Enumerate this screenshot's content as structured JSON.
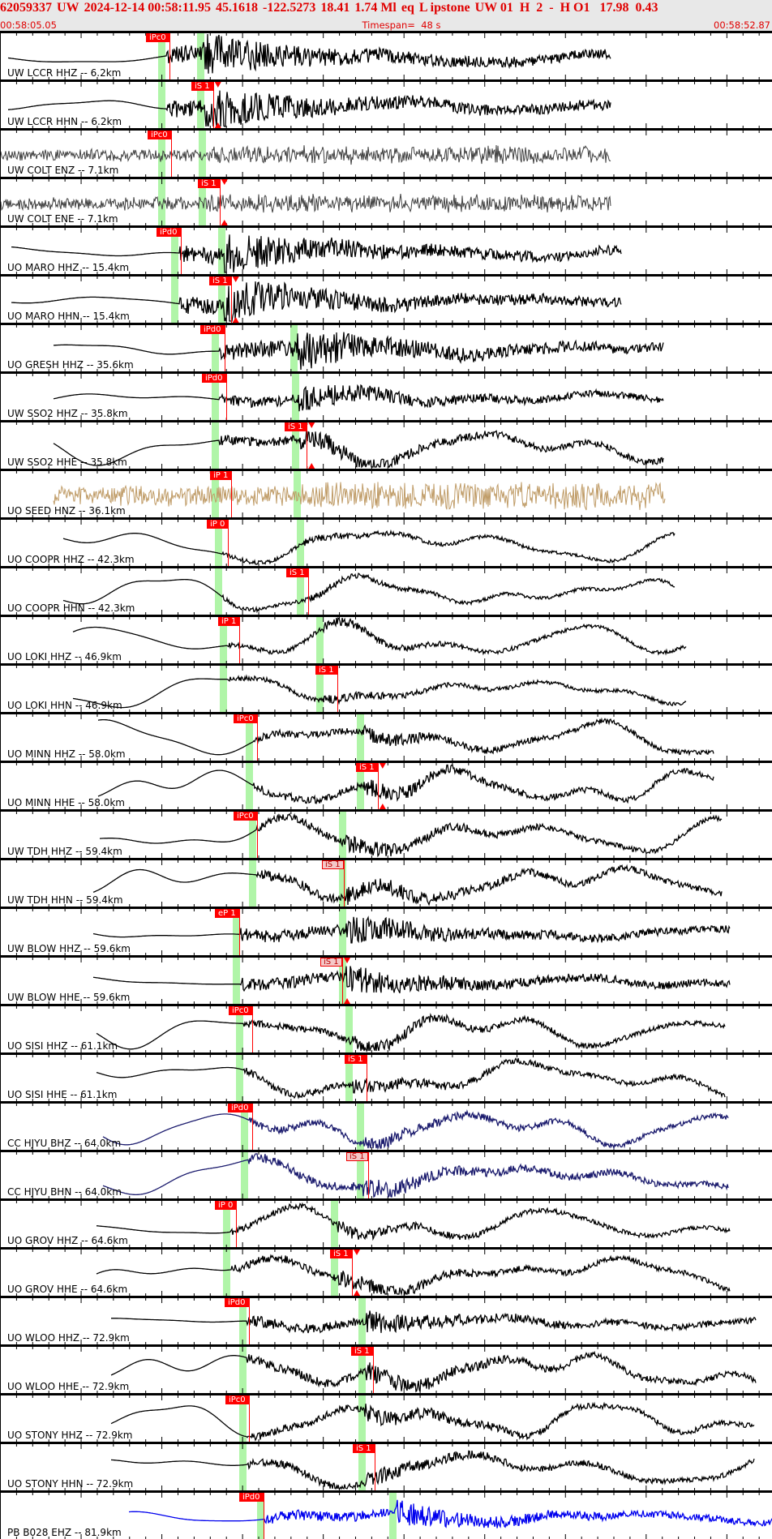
{
  "header": {
    "event_id": "62059337",
    "network": "UW",
    "origin_time": "2024-12-14 00:58:11.95",
    "latitude": "45.1618",
    "longitude": "-122.5273",
    "depth": "18.41",
    "magnitude": "1.74 Ml",
    "event_type": "eq",
    "location": "L ipstone",
    "extra": "UW 01  H  2  -  H O1   17.98  0.43",
    "start_time": "00:58:05.05",
    "timespan": "Timespan=  48 s",
    "end_time": "00:58:52.87"
  },
  "timespan_s": 48,
  "colors": {
    "header_text": "#e00000",
    "pick": "#ff0000",
    "band": "#b0f5a8",
    "trace": "#000000",
    "noise_trace": "#404040",
    "seed_trace": "#bf9b66",
    "cc_trace": "#1c1c6e",
    "pb_trace": "#0000ee"
  },
  "rows": [
    {
      "label": "UW LCCR HHZ -- 6.2km",
      "pick": "iPc0",
      "pick_t": 10.5,
      "p_band": 10.0,
      "s_band": 12.4,
      "t0": 0.5,
      "t1": 37.8,
      "color": "#000000",
      "kind": "event",
      "ev": 1,
      "tri": false,
      "soft": false
    },
    {
      "label": "UW LCCR HHN -- 6.2km",
      "pick": "iS 1",
      "pick_t": 13.2,
      "p_band": 10.0,
      "s_band": 12.4,
      "t0": 0.5,
      "t1": 37.8,
      "color": "#000000",
      "kind": "event",
      "ev": 1,
      "tri": true,
      "soft": false
    },
    {
      "label": "UW COLT ENZ -- 7.1km",
      "pick": "iPc0",
      "pick_t": 10.6,
      "p_band": 10.0,
      "s_band": 12.5,
      "t0": 0,
      "t1": 37.8,
      "color": "#404040",
      "kind": "noise",
      "ev": 1,
      "tri": false,
      "soft": false
    },
    {
      "label": "UW COLT ENE -- 7.1km",
      "pick": "iS 1",
      "pick_t": 13.6,
      "p_band": 10.0,
      "s_band": 12.5,
      "t0": 0,
      "t1": 37.8,
      "color": "#404040",
      "kind": "noise",
      "ev": 1,
      "tri": true,
      "soft": false
    },
    {
      "label": "UO MARO HHZ -- 15.4km",
      "pick": "iPd0",
      "pick_t": 11.2,
      "p_band": 10.8,
      "s_band": 13.7,
      "t0": 0.7,
      "t1": 38.5,
      "color": "#000000",
      "kind": "event",
      "ev": 1,
      "tri": false,
      "soft": false
    },
    {
      "label": "UO MARO HHN -- 15.4km",
      "pick": "iS 1",
      "pick_t": 14.3,
      "p_band": 10.8,
      "s_band": 13.7,
      "t0": 0.7,
      "t1": 38.5,
      "color": "#000000",
      "kind": "event",
      "ev": 1,
      "tri": true,
      "soft": false
    },
    {
      "label": "UO GRESH HHZ -- 35.6km",
      "pick": "iPd0",
      "pick_t": 13.9,
      "p_band": 13.3,
      "s_band": 18.2,
      "t0": 3.3,
      "t1": 41.1,
      "color": "#000000",
      "kind": "event",
      "ev": 1,
      "tri": false,
      "soft": false
    },
    {
      "label": "UW SSO2 HHZ -- 35.8km",
      "pick": "iPd0",
      "pick_t": 14.0,
      "p_band": 13.3,
      "s_band": 18.3,
      "t0": 3.3,
      "t1": 41.1,
      "color": "#000000",
      "kind": "event",
      "ev": 0.6,
      "tri": false,
      "soft": false
    },
    {
      "label": "UW SSO2 HHE -- 35.8km",
      "pick": "iS 1",
      "pick_t": 19.0,
      "p_band": 13.3,
      "s_band": 18.3,
      "t0": 3.3,
      "t1": 41.1,
      "color": "#000000",
      "kind": "event",
      "ev": 0.5,
      "tri": true,
      "soft": false
    },
    {
      "label": "UO SEED HNZ -- 36.1km",
      "pick": "iP 1",
      "pick_t": 14.3,
      "p_band": 13.3,
      "s_band": 18.4,
      "t0": 3.3,
      "t1": 41.2,
      "color": "#bf9b66",
      "kind": "noise",
      "ev": 1,
      "tri": false,
      "soft": false
    },
    {
      "label": "UO COOPR HHZ -- 42.3km",
      "pick": "iP 0",
      "pick_t": 14.1,
      "p_band": 13.5,
      "s_band": 18.6,
      "t0": 3.9,
      "t1": 41.8,
      "color": "#000000",
      "kind": "event",
      "ev": 0.15,
      "tri": false,
      "soft": false
    },
    {
      "label": "UO COOPR HHN -- 42.3km",
      "pick": "iS 1",
      "pick_t": 19.1,
      "p_band": 13.5,
      "s_band": 18.6,
      "t0": 3.9,
      "t1": 41.8,
      "color": "#000000",
      "kind": "event",
      "ev": 0.15,
      "tri": false,
      "soft": false
    },
    {
      "label": "UO LOKI HHZ -- 46.9km",
      "pick": "iP 1",
      "pick_t": 14.8,
      "p_band": 13.8,
      "s_band": 19.8,
      "t0": 4.5,
      "t1": 42.5,
      "color": "#000000",
      "kind": "event",
      "ev": 0.2,
      "tri": false,
      "soft": false
    },
    {
      "label": "UO LOKI HHN -- 46.9km",
      "pick": "iS 1",
      "pick_t": 20.9,
      "p_band": 13.8,
      "s_band": 19.8,
      "t0": 4.5,
      "t1": 42.5,
      "color": "#000000",
      "kind": "event",
      "ev": 0.2,
      "tri": false,
      "soft": false
    },
    {
      "label": "UO MINN HHZ -- 58.0km",
      "pick": "iPc0",
      "pick_t": 15.9,
      "p_band": 15.4,
      "s_band": 22.3,
      "t0": 6.1,
      "t1": 44.2,
      "color": "#000000",
      "kind": "event",
      "ev": 0.35,
      "tri": false,
      "soft": false
    },
    {
      "label": "UO MINN HHE -- 58.0km",
      "pick": "iS 1",
      "pick_t": 23.4,
      "p_band": 15.4,
      "s_band": 22.3,
      "t0": 6.1,
      "t1": 44.2,
      "color": "#000000",
      "kind": "event",
      "ev": 0.4,
      "tri": true,
      "soft": false
    },
    {
      "label": "UW TDH HHZ -- 59.4km",
      "pick": "iPc0",
      "pick_t": 15.9,
      "p_band": 15.6,
      "s_band": 21.2,
      "t0": 6.2,
      "t1": 44.7,
      "color": "#000000",
      "kind": "event",
      "ev": 0.4,
      "tri": false,
      "soft": false
    },
    {
      "label": "UW TDH HHN -- 59.4km",
      "pick": "iS 1",
      "pick_t": 21.3,
      "p_band": 15.6,
      "s_band": 21.2,
      "t0": 5.8,
      "t1": 44.7,
      "color": "#000000",
      "kind": "event",
      "ev": 0.5,
      "tri": false,
      "soft": true
    },
    {
      "label": "UW BLOW HHZ -- 59.6km",
      "pick": "eP 1",
      "pick_t": 14.8,
      "p_band": 14.6,
      "s_band": 21.2,
      "t0": 5.8,
      "t1": 45.2,
      "color": "#000000",
      "kind": "event",
      "ev": 0.7,
      "tri": false,
      "soft": false
    },
    {
      "label": "UW BLOW HHE -- 59.6km",
      "pick": "iS 1",
      "pick_t": 21.2,
      "p_band": 14.6,
      "s_band": 21.2,
      "t0": 5.8,
      "t1": 45.2,
      "color": "#000000",
      "kind": "event",
      "ev": 0.7,
      "tri": true,
      "soft": true
    },
    {
      "label": "UO SISI HHZ -- 61.1km",
      "pick": "iPc0",
      "pick_t": 15.6,
      "p_band": 14.8,
      "s_band": 21.6,
      "t0": 6.0,
      "t1": 44.9,
      "color": "#000000",
      "kind": "event",
      "ev": 0.35,
      "tri": false,
      "soft": false
    },
    {
      "label": "UO SISI HHE -- 61.1km",
      "pick": "iS 1",
      "pick_t": 22.7,
      "p_band": 14.8,
      "s_band": 21.6,
      "t0": 6.0,
      "t1": 44.9,
      "color": "#000000",
      "kind": "event",
      "ev": 0.35,
      "tri": false,
      "soft": false
    },
    {
      "label": "CC HJYU BHZ -- 64.0km",
      "pick": "iPd0",
      "pick_t": 15.6,
      "p_band": 15.1,
      "s_band": 22.3,
      "t0": 6.4,
      "t1": 45.1,
      "color": "#1c1c6e",
      "kind": "event",
      "ev": 0.35,
      "tri": false,
      "soft": false
    },
    {
      "label": "CC HJYU BHN -- 64.0km",
      "pick": "iS 1",
      "pick_t": 22.8,
      "p_band": 15.1,
      "s_band": 22.3,
      "t0": 6.4,
      "t1": 45.1,
      "color": "#1c1c6e",
      "kind": "event",
      "ev": 0.5,
      "tri": false,
      "soft": true
    },
    {
      "label": "UO GROV HHZ -- 64.6km",
      "pick": "iP 0",
      "pick_t": 14.6,
      "p_band": 14.0,
      "s_band": 20.7,
      "t0": 6.0,
      "t1": 45.2,
      "color": "#000000",
      "kind": "event",
      "ev": 0.3,
      "tri": false,
      "soft": false
    },
    {
      "label": "UO GROV HHE -- 64.6km",
      "pick": "iS 1",
      "pick_t": 21.8,
      "p_band": 14.0,
      "s_band": 20.7,
      "t0": 6.0,
      "t1": 45.2,
      "color": "#000000",
      "kind": "event",
      "ev": 0.4,
      "tri": true,
      "soft": false
    },
    {
      "label": "UO WLOO HHZ -- 72.9km",
      "pick": "iPd0",
      "pick_t": 15.4,
      "p_band": 15.0,
      "s_band": 22.4,
      "t0": 6.9,
      "t1": 46.8,
      "color": "#000000",
      "kind": "event",
      "ev": 0.55,
      "tri": false,
      "soft": false
    },
    {
      "label": "UO WLOO HHE -- 72.9km",
      "pick": "iS 1",
      "pick_t": 23.1,
      "p_band": 15.0,
      "s_band": 22.4,
      "t0": 6.9,
      "t1": 46.8,
      "color": "#000000",
      "kind": "event",
      "ev": 0.5,
      "tri": false,
      "soft": false
    },
    {
      "label": "UO STONY HHZ -- 72.9km",
      "pick": "iPc0",
      "pick_t": 15.4,
      "p_band": 15.0,
      "s_band": 22.4,
      "t0": 6.9,
      "t1": 46.7,
      "color": "#000000",
      "kind": "event",
      "ev": 0.4,
      "tri": false,
      "soft": false
    },
    {
      "label": "UO STONY HHN -- 72.9km",
      "pick": "iS 1",
      "pick_t": 23.2,
      "p_band": 15.0,
      "s_band": 22.4,
      "t0": 6.9,
      "t1": 46.7,
      "color": "#000000",
      "kind": "event",
      "ev": 0.4,
      "tri": false,
      "soft": false
    },
    {
      "label": "PB B028 EHZ -- 81.9km",
      "pick": "iPd0",
      "pick_t": 16.3,
      "p_band": 16.1,
      "s_band": 24.3,
      "t0": 8.0,
      "t1": 48,
      "color": "#0000ee",
      "kind": "event",
      "ev": 0.6,
      "tri": false,
      "soft": false
    }
  ]
}
